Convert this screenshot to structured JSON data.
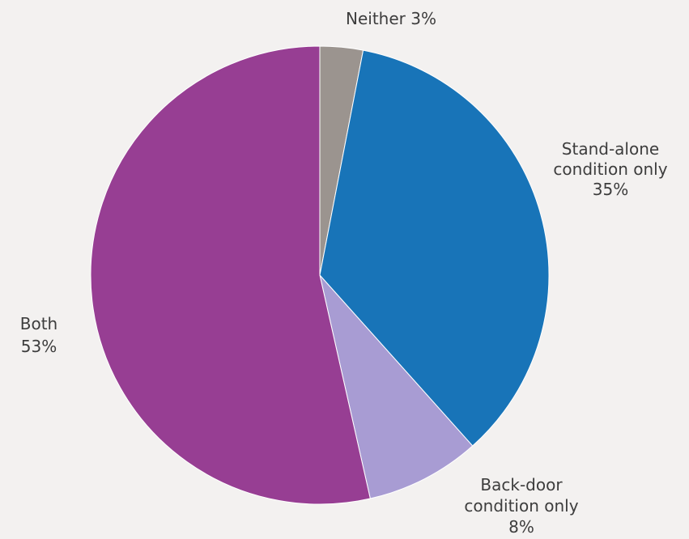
{
  "chart_data": {
    "type": "pie",
    "slices": [
      {
        "name": "Neither",
        "value": 3,
        "color": "#9b948f",
        "label_lines": [
          "Neither 3%"
        ]
      },
      {
        "name": "Stand-alone condition only",
        "value": 35,
        "color": "#1874b8",
        "label_lines": [
          "Stand-alone",
          "condition only",
          "35%"
        ]
      },
      {
        "name": "Back-door condition only",
        "value": 8,
        "color": "#a89cd3",
        "label_lines": [
          "Back-door",
          "condition only",
          "8%"
        ]
      },
      {
        "name": "Both",
        "value": 53,
        "color": "#973e93",
        "label_lines": [
          "Both",
          "53%"
        ]
      }
    ],
    "start_angle": "12 o'clock",
    "direction": "clockwise",
    "legend": "none",
    "title": ""
  }
}
